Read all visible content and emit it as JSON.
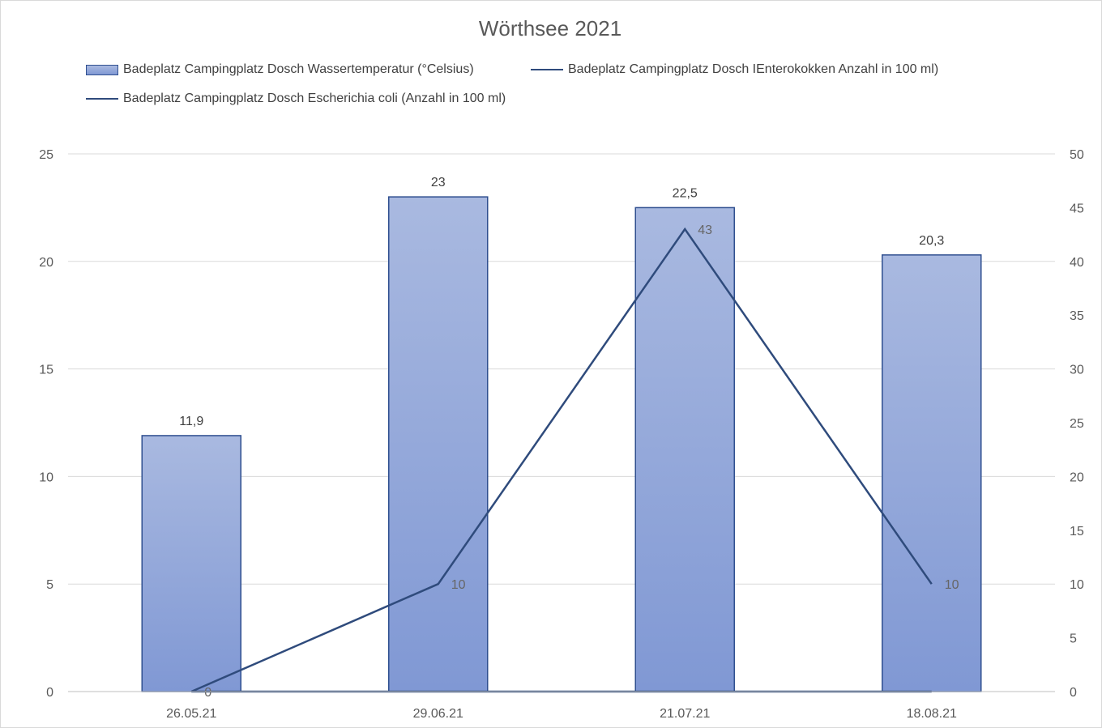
{
  "chart_data": {
    "type": "bar",
    "title": "Wörthsee  2021",
    "categories": [
      "26.05.21",
      "29.06.21",
      "21.07.21",
      "18.08.21"
    ],
    "y_left": {
      "min": 0,
      "max": 25,
      "step": 5
    },
    "y_right": {
      "min": 0,
      "max": 50,
      "step": 5
    },
    "grid": true,
    "legend_position": "top",
    "series": [
      {
        "name": "Badeplatz Campingplatz Dosch Wassertemperatur (°Celsius)",
        "type": "bar",
        "axis": "left",
        "values": [
          11.9,
          23,
          22.5,
          20.3
        ],
        "labels": [
          "11,9",
          "23",
          "22,5",
          "20,3"
        ],
        "color": "#8ea2d8"
      },
      {
        "name": "Badeplatz Campingplatz Dosch IEnterokokken Anzahl in 100 ml)",
        "type": "line",
        "axis": "right",
        "values": [
          0,
          10,
          43,
          10
        ],
        "labels": [
          "0",
          "10",
          "43",
          "10"
        ],
        "color": "#2f4b7c"
      },
      {
        "name": "Badeplatz Campingplatz Dosch Escherichia coli  (Anzahl in 100 ml)",
        "type": "line",
        "axis": "right",
        "values": [
          0,
          0,
          0,
          0
        ],
        "color": "#2f4b7c"
      }
    ]
  }
}
